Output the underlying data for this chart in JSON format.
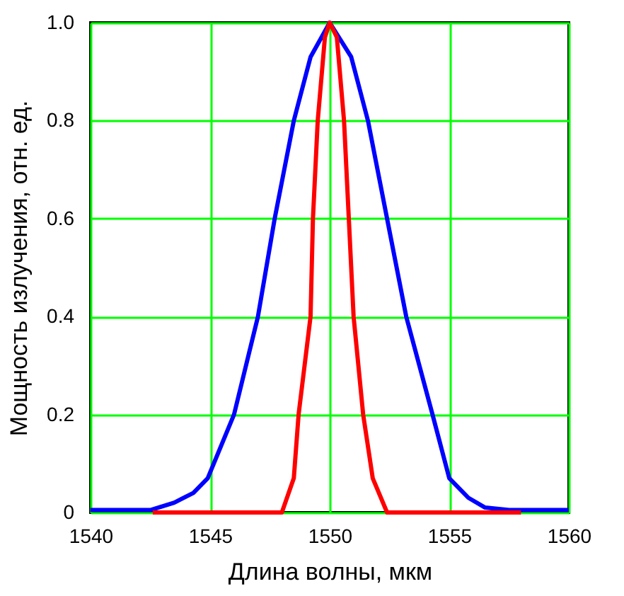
{
  "chart_data": {
    "type": "line",
    "xlabel": "Длина волны, мкм",
    "ylabel": "Мощность излучения, отн. ед.",
    "xlim": [
      1540,
      1560
    ],
    "ylim": [
      0,
      1
    ],
    "xticks": [
      1540,
      1545,
      1550,
      1555,
      1560
    ],
    "yticks": [
      0,
      0.2,
      0.4,
      0.6,
      0.8,
      {
        "value": 1,
        "label": "1.0"
      }
    ],
    "grid": true,
    "legend": false,
    "marker": "none",
    "line_style": "solid",
    "series": [
      {
        "color": "#0000ff",
        "x": [
          1540,
          1542.5,
          1543.5,
          1544.3,
          1544.9,
          1546.0,
          1547.0,
          1547.7,
          1548.5,
          1549.2,
          1550.0,
          1550.9,
          1551.6,
          1552.4,
          1553.2,
          1554.3,
          1555.0,
          1555.8,
          1556.5,
          1557.5,
          1560
        ],
        "values": [
          0.005,
          0.005,
          0.02,
          0.04,
          0.07,
          0.2,
          0.4,
          0.6,
          0.8,
          0.93,
          1.0,
          0.93,
          0.8,
          0.6,
          0.4,
          0.2,
          0.07,
          0.03,
          0.01,
          0.005,
          0.005
        ]
      },
      {
        "color": "#ff0000",
        "x": [
          1542.6,
          1548.0,
          1548.5,
          1548.7,
          1549.2,
          1549.3,
          1549.5,
          1549.8,
          1550.0,
          1550.3,
          1550.6,
          1550.8,
          1551.0,
          1551.4,
          1551.8,
          1552.4,
          1558
        ],
        "values": [
          0,
          0,
          0.07,
          0.2,
          0.4,
          0.6,
          0.8,
          0.97,
          1.0,
          0.97,
          0.8,
          0.6,
          0.4,
          0.2,
          0.07,
          0,
          0
        ]
      }
    ]
  }
}
